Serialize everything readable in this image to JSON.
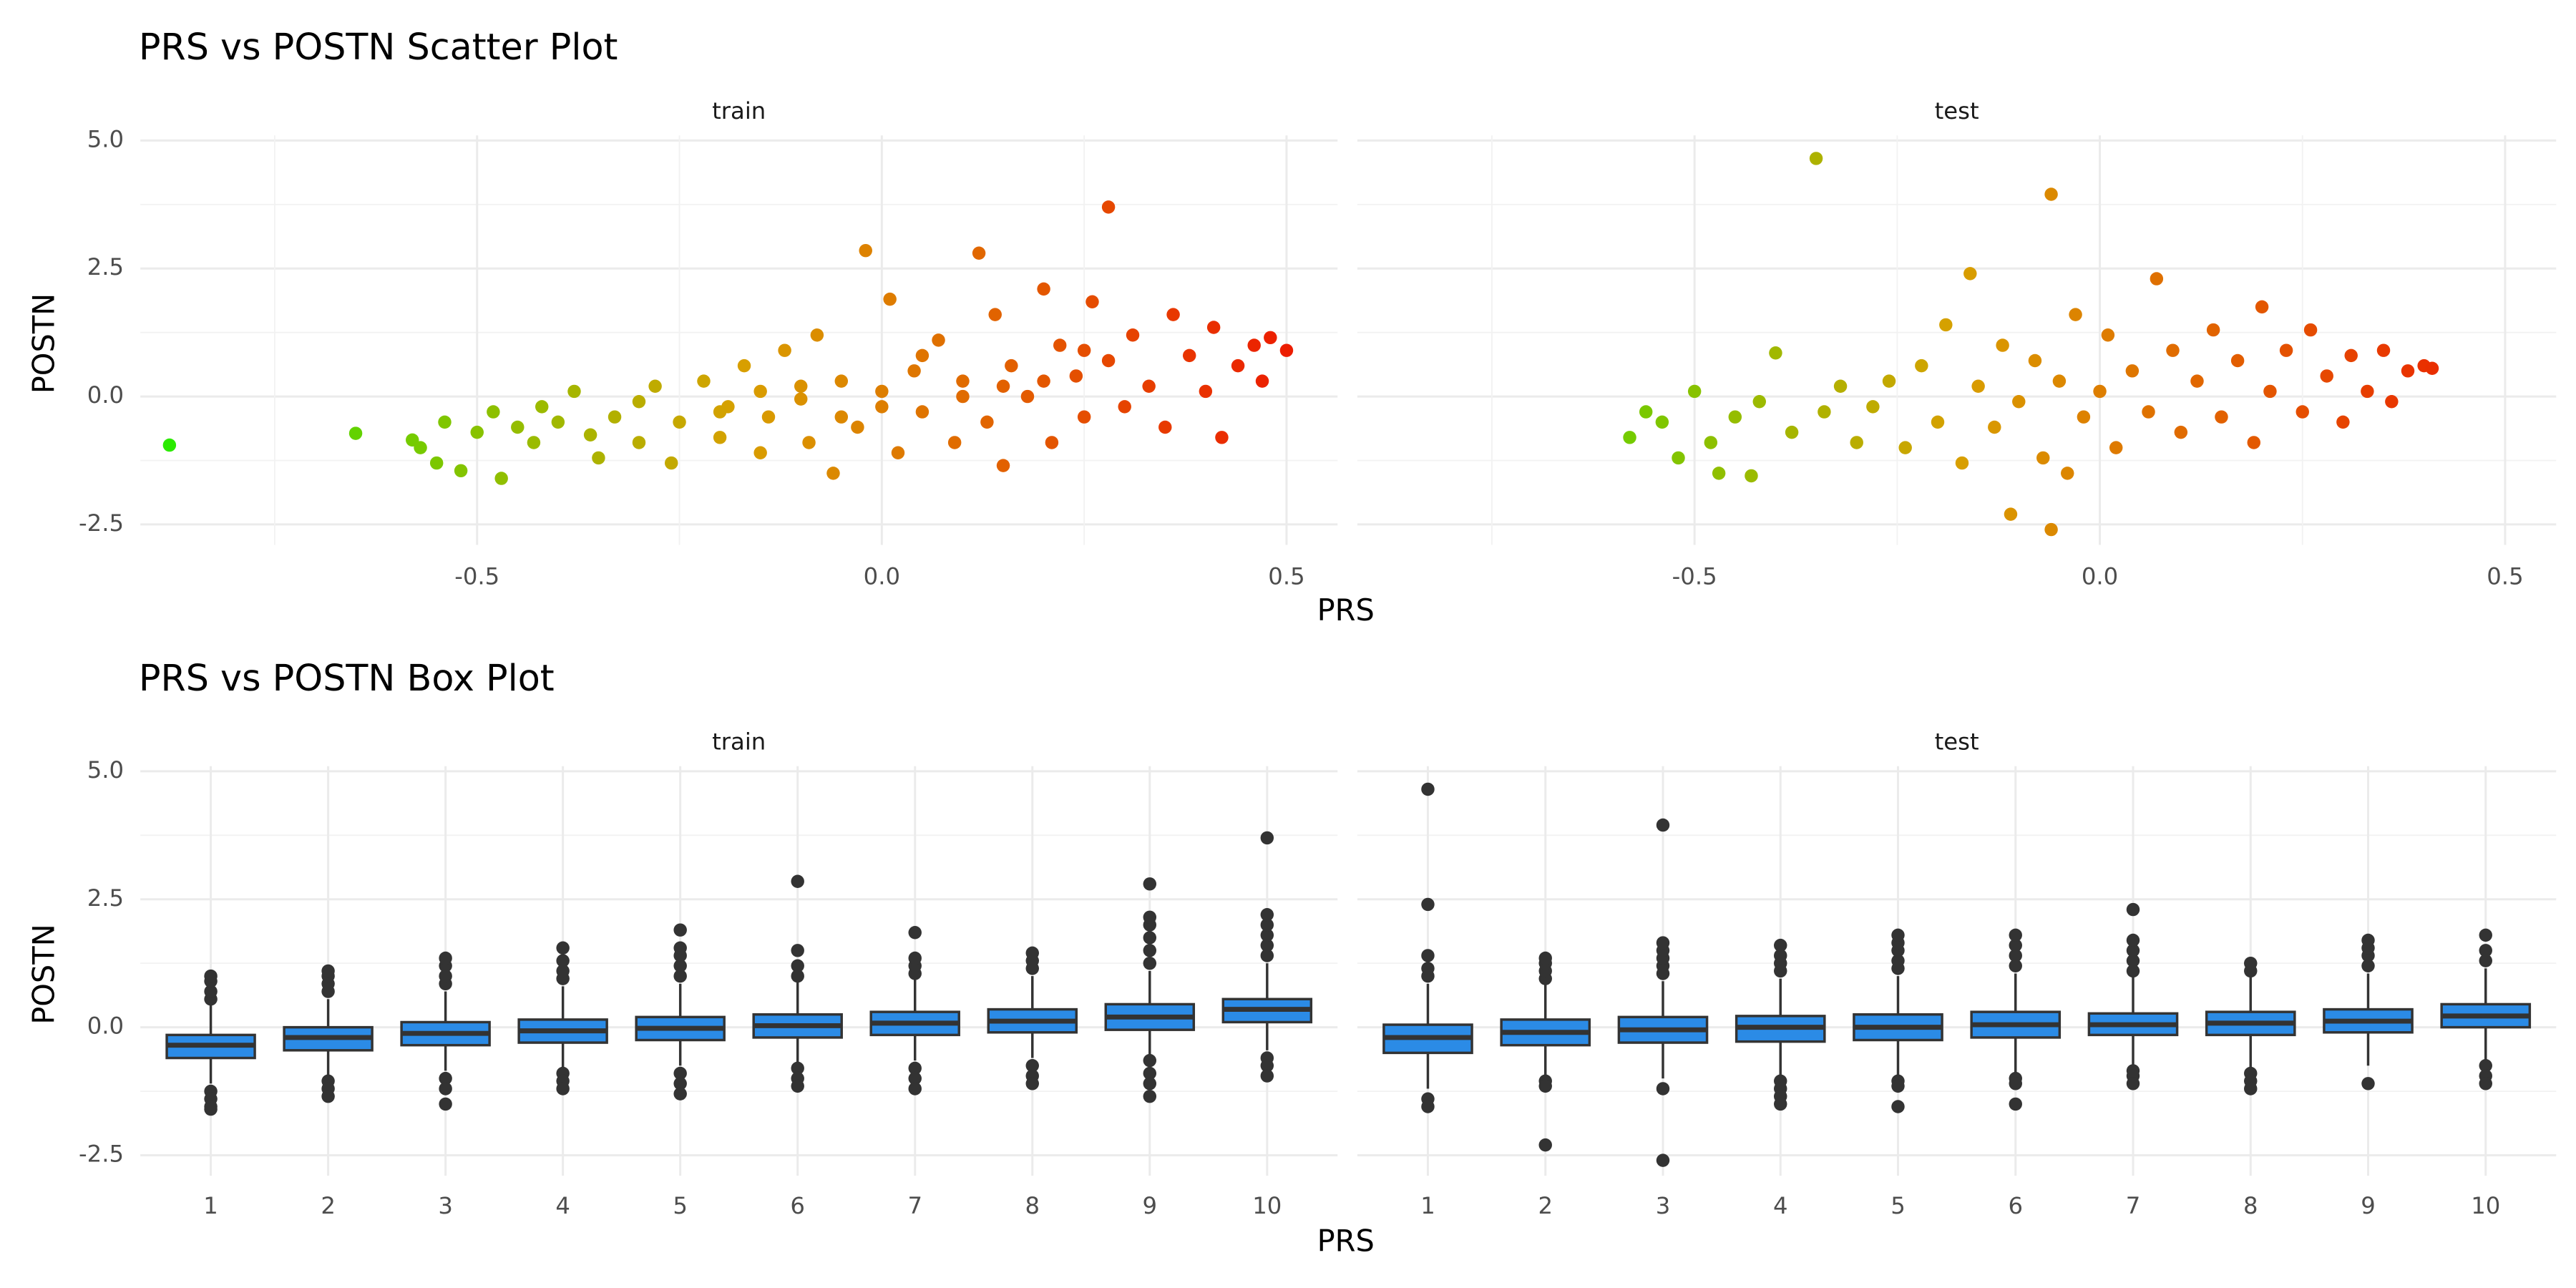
{
  "chart_data": [
    {
      "type": "scatter",
      "title": "PRS vs POSTN Scatter Plot",
      "xlabel": "PRS",
      "ylabel": "POSTN",
      "xlim": [
        -0.916,
        0.563
      ],
      "ylim": [
        -2.9,
        5.1
      ],
      "xticks": [
        -0.5,
        {
          "value": 0,
          "label": "0.0"
        },
        0.5
      ],
      "yticks": [
        {
          "value": 5,
          "label": "5.0"
        },
        2.5,
        {
          "value": 0,
          "label": "0.0"
        },
        -2.5
      ],
      "x_minor_ticks": [
        -0.75,
        -0.25,
        0.25
      ],
      "y_minor_ticks": [
        3.75,
        1.25,
        -1.25
      ],
      "grid": true,
      "color_scale": [
        "#22ee00",
        "#d8a000",
        "#ee1100"
      ],
      "facets": [
        {
          "name": "train",
          "x": [
            -0.88,
            -0.65,
            -0.58,
            -0.57,
            -0.55,
            -0.54,
            -0.52,
            -0.5,
            -0.48,
            -0.47,
            -0.45,
            -0.43,
            -0.42,
            -0.4,
            -0.38,
            -0.36,
            -0.35,
            -0.33,
            -0.3,
            -0.3,
            -0.28,
            -0.26,
            -0.25,
            -0.22,
            -0.2,
            -0.19,
            -0.17,
            -0.15,
            -0.14,
            -0.12,
            -0.1,
            -0.09,
            -0.08,
            -0.06,
            -0.05,
            -0.03,
            -0.02,
            0.0,
            0.01,
            0.02,
            0.04,
            0.05,
            0.07,
            0.09,
            0.1,
            0.12,
            0.13,
            0.14,
            0.15,
            0.16,
            0.18,
            0.2,
            0.21,
            0.22,
            0.24,
            0.25,
            0.26,
            0.28,
            0.28,
            0.3,
            0.31,
            0.33,
            0.35,
            0.36,
            0.38,
            0.4,
            0.41,
            0.42,
            0.44,
            0.46,
            0.47,
            0.48,
            0.5,
            -0.2,
            -0.1,
            0.0,
            0.1,
            0.2,
            0.05,
            -0.15,
            0.15,
            -0.05,
            0.25
          ],
          "y": [
            -0.95,
            -0.72,
            -0.85,
            -1.0,
            -1.3,
            -0.5,
            -1.45,
            -0.7,
            -0.3,
            -1.6,
            -0.6,
            -0.9,
            -0.2,
            -0.5,
            0.1,
            -0.75,
            -1.2,
            -0.4,
            -0.1,
            -0.9,
            0.2,
            -1.3,
            -0.5,
            0.3,
            -0.8,
            -0.2,
            0.6,
            -1.1,
            -0.4,
            0.9,
            -0.05,
            -0.9,
            1.2,
            -1.5,
            0.3,
            -0.6,
            2.85,
            0.1,
            1.9,
            -1.1,
            0.5,
            -0.3,
            1.1,
            -0.9,
            0.3,
            2.8,
            -0.5,
            1.6,
            -1.35,
            0.6,
            0.0,
            2.1,
            -0.9,
            1.0,
            0.4,
            -0.4,
            1.85,
            3.7,
            0.7,
            -0.2,
            1.2,
            0.2,
            -0.6,
            1.6,
            0.8,
            0.1,
            1.35,
            -0.8,
            0.6,
            1.0,
            0.3,
            1.15,
            0.9,
            -0.3,
            0.2,
            -0.2,
            0.0,
            0.3,
            0.8,
            0.1,
            0.2,
            -0.4,
            0.9
          ]
        },
        {
          "name": "test",
          "x": [
            -0.58,
            -0.56,
            -0.54,
            -0.52,
            -0.5,
            -0.48,
            -0.47,
            -0.45,
            -0.43,
            -0.42,
            -0.4,
            -0.38,
            -0.35,
            -0.34,
            -0.32,
            -0.3,
            -0.28,
            -0.26,
            -0.24,
            -0.22,
            -0.2,
            -0.19,
            -0.17,
            -0.16,
            -0.15,
            -0.13,
            -0.12,
            -0.11,
            -0.1,
            -0.08,
            -0.07,
            -0.06,
            -0.06,
            -0.05,
            -0.04,
            -0.03,
            -0.02,
            0.0,
            0.01,
            0.02,
            0.04,
            0.06,
            0.07,
            0.09,
            0.1,
            0.12,
            0.14,
            0.15,
            0.17,
            0.19,
            0.2,
            0.21,
            0.23,
            0.25,
            0.26,
            0.28,
            0.3,
            0.31,
            0.33,
            0.35,
            0.36,
            0.38,
            0.4,
            0.41
          ],
          "y": [
            -0.8,
            -0.3,
            -0.5,
            -1.2,
            0.1,
            -0.9,
            -1.5,
            -0.4,
            -1.55,
            -0.1,
            0.85,
            -0.7,
            4.65,
            -0.3,
            0.2,
            -0.9,
            -0.2,
            0.3,
            -1.0,
            0.6,
            -0.5,
            1.4,
            -1.3,
            2.4,
            0.2,
            -0.6,
            1.0,
            -2.3,
            -0.1,
            0.7,
            -1.2,
            3.95,
            -2.6,
            0.3,
            -1.5,
            1.6,
            -0.4,
            0.1,
            1.2,
            -1.0,
            0.5,
            -0.3,
            2.3,
            0.9,
            -0.7,
            0.3,
            1.3,
            -0.4,
            0.7,
            -0.9,
            1.75,
            0.1,
            0.9,
            -0.3,
            1.3,
            0.4,
            -0.5,
            0.8,
            0.1,
            0.9,
            -0.1,
            0.5,
            0.6,
            0.55
          ]
        }
      ]
    },
    {
      "type": "box",
      "title": "PRS vs POSTN Box Plot",
      "xlabel": "PRS",
      "ylabel": "POSTN",
      "categories": [
        "1",
        "2",
        "3",
        "4",
        "5",
        "6",
        "7",
        "8",
        "9",
        "10"
      ],
      "ylim": [
        -2.9,
        5.1
      ],
      "yticks": [
        {
          "value": 5,
          "label": "5.0"
        },
        2.5,
        {
          "value": 0,
          "label": "0.0"
        },
        -2.5
      ],
      "y_minor_ticks": [
        3.75,
        1.25,
        -1.25
      ],
      "grid": true,
      "color": "#2b8be6",
      "facets": [
        {
          "name": "train",
          "q1": [
            -0.6,
            -0.45,
            -0.35,
            -0.3,
            -0.25,
            -0.2,
            -0.15,
            -0.1,
            -0.05,
            0.1
          ],
          "median": [
            -0.35,
            -0.2,
            -0.12,
            -0.07,
            -0.02,
            0.03,
            0.08,
            0.12,
            0.2,
            0.35
          ],
          "q3": [
            -0.15,
            0.0,
            0.1,
            0.15,
            0.2,
            0.25,
            0.3,
            0.35,
            0.45,
            0.55
          ],
          "whisker_low": [
            -1.1,
            -0.95,
            -0.85,
            -0.8,
            -0.75,
            -0.7,
            -0.65,
            -0.6,
            -0.55,
            -0.45
          ],
          "whisker_high": [
            0.45,
            0.55,
            0.7,
            0.8,
            0.85,
            0.9,
            0.95,
            1.0,
            1.1,
            1.25
          ],
          "outliers": [
            [
              0.55,
              0.7,
              0.9,
              1.0,
              -1.25,
              -1.4,
              -1.55,
              -1.6
            ],
            [
              0.7,
              0.85,
              1.0,
              1.1,
              -1.05,
              -1.2,
              -1.35
            ],
            [
              0.85,
              1.0,
              1.2,
              1.35,
              -1.0,
              -1.2,
              -1.5
            ],
            [
              0.95,
              1.1,
              1.3,
              1.55,
              -0.9,
              -1.05,
              -1.2
            ],
            [
              1.0,
              1.2,
              1.4,
              1.55,
              1.9,
              -0.9,
              -1.1,
              -1.3
            ],
            [
              1.0,
              1.2,
              1.5,
              2.85,
              -0.8,
              -1.0,
              -1.15
            ],
            [
              1.05,
              1.2,
              1.35,
              1.85,
              -0.8,
              -1.0,
              -1.2
            ],
            [
              1.15,
              1.3,
              1.45,
              -0.75,
              -0.95,
              -1.1
            ],
            [
              1.25,
              1.5,
              1.75,
              2.0,
              2.15,
              2.8,
              -0.65,
              -0.9,
              -1.1,
              -1.35
            ],
            [
              1.4,
              1.6,
              1.8,
              2.0,
              2.2,
              3.7,
              -0.6,
              -0.75,
              -0.95
            ]
          ]
        },
        {
          "name": "test",
          "q1": [
            -0.5,
            -0.35,
            -0.3,
            -0.28,
            -0.25,
            -0.2,
            -0.15,
            -0.15,
            -0.1,
            0.0
          ],
          "median": [
            -0.2,
            -0.1,
            -0.05,
            0.0,
            0.0,
            0.05,
            0.05,
            0.08,
            0.12,
            0.22
          ],
          "q3": [
            0.05,
            0.15,
            0.2,
            0.22,
            0.25,
            0.3,
            0.27,
            0.3,
            0.35,
            0.45
          ],
          "whisker_low": [
            -1.2,
            -1.0,
            -1.0,
            -1.0,
            -0.95,
            -0.9,
            -0.8,
            -0.8,
            -0.75,
            -0.65
          ],
          "whisker_high": [
            0.85,
            0.85,
            0.9,
            0.95,
            1.0,
            1.05,
            1.0,
            1.0,
            1.05,
            1.15
          ],
          "outliers": [
            [
              1.0,
              1.15,
              1.4,
              2.4,
              4.65,
              -1.4,
              -1.55
            ],
            [
              0.95,
              1.1,
              1.25,
              1.35,
              -1.05,
              -1.15,
              -2.3
            ],
            [
              1.05,
              1.2,
              1.35,
              1.5,
              1.65,
              3.95,
              -1.2,
              -2.6
            ],
            [
              1.1,
              1.25,
              1.4,
              1.6,
              -1.05,
              -1.2,
              -1.35,
              -1.5
            ],
            [
              1.15,
              1.3,
              1.5,
              1.65,
              1.8,
              -1.05,
              -1.15,
              -1.55
            ],
            [
              1.2,
              1.4,
              1.6,
              1.8,
              -1.0,
              -1.1,
              -1.5
            ],
            [
              1.1,
              1.3,
              1.5,
              1.7,
              2.3,
              -0.85,
              -0.95,
              -1.1
            ],
            [
              1.1,
              1.25,
              -0.9,
              -1.05,
              -1.2
            ],
            [
              1.2,
              1.4,
              1.55,
              1.7,
              -1.1
            ],
            [
              1.3,
              1.5,
              1.8,
              -0.75,
              -0.95,
              -1.1
            ]
          ]
        }
      ]
    }
  ]
}
